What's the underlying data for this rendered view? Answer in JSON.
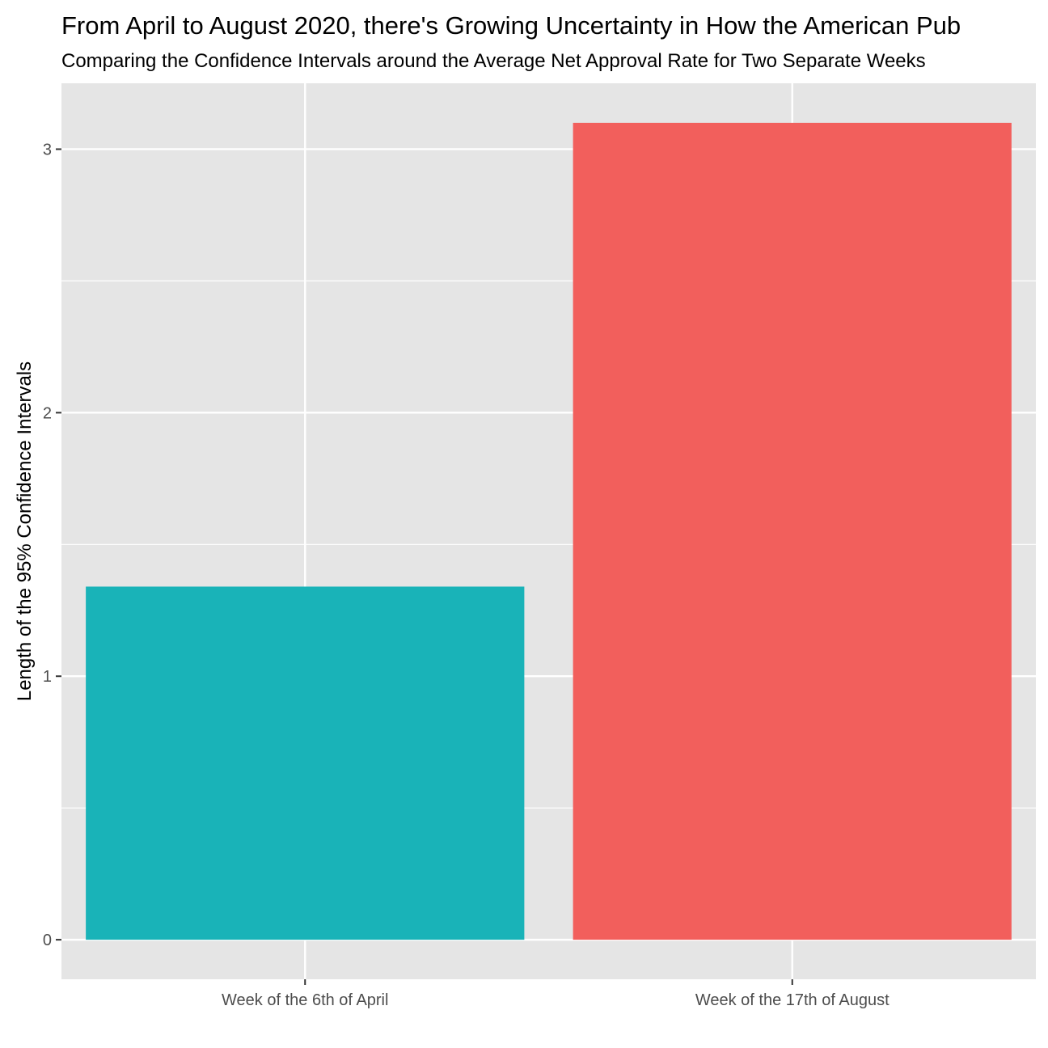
{
  "chart_data": {
    "type": "bar",
    "title": "From April to August 2020, there's Growing Uncertainty in How the American Pub",
    "subtitle": "Comparing the Confidence Intervals around the Average Net Approval Rate for Two Separate Weeks",
    "xlabel": "",
    "ylabel": "Length of the 95% Confidence Intervals",
    "categories": [
      "Week of the 6th of April",
      "Week of the 17th of August"
    ],
    "values": [
      1.34,
      3.1
    ],
    "colors": [
      "#19B3B8",
      "#F25F5C"
    ],
    "ylim": [
      -0.15,
      3.25
    ],
    "yticks": [
      0,
      1,
      2,
      3
    ],
    "grid": true,
    "legend": "none",
    "background": "#E5E5E5"
  }
}
